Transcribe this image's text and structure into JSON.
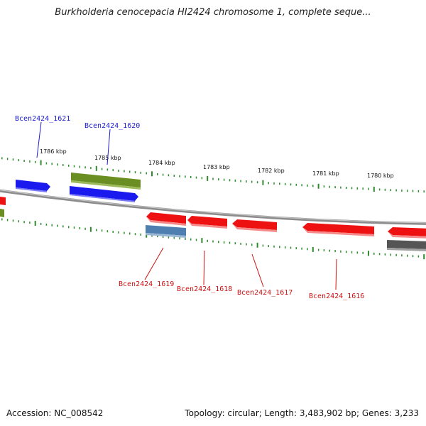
{
  "title": "Burkholderia cenocepacia HI2424 chromosome 1, complete seque...",
  "footer": {
    "accession": "Accession: NC_008542",
    "summary": "Topology: circular; Length: 3,483,902 bp; Genes: 3,233"
  },
  "colors": {
    "backbone": "#8c8c8c",
    "tick": "#2e8b2e",
    "forward_label": "#1a1acc",
    "reverse_label": "#cc1111",
    "gene_blue": "#1a1aee",
    "gene_green": "#6b8e23",
    "gene_red": "#ee1111",
    "gene_steel": "#4f7fb0",
    "gene_gray": "#555555"
  },
  "ticks": [
    {
      "label": "1786 kbp"
    },
    {
      "label": "1785 kbp"
    },
    {
      "label": "1784 kbp"
    },
    {
      "label": "1783 kbp"
    },
    {
      "label": "1782 kbp"
    },
    {
      "label": "1781 kbp"
    },
    {
      "label": "1780 kbp"
    }
  ],
  "gene_labels": [
    {
      "name": "Bcen2424_1621",
      "strand": "forward"
    },
    {
      "name": "Bcen2424_1620",
      "strand": "forward"
    },
    {
      "name": "Bcen2424_1619",
      "strand": "reverse"
    },
    {
      "name": "Bcen2424_1618",
      "strand": "reverse"
    },
    {
      "name": "Bcen2424_1617",
      "strand": "reverse"
    },
    {
      "name": "Bcen2424_1616",
      "strand": "reverse"
    }
  ]
}
